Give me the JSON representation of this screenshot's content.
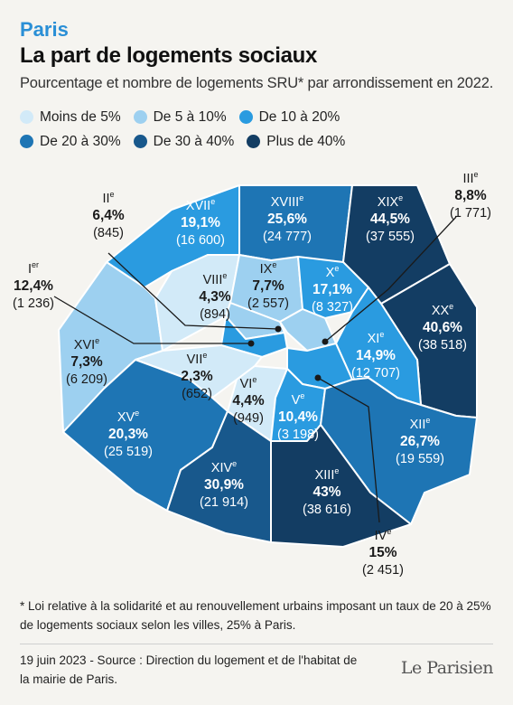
{
  "header": {
    "kicker": "Paris",
    "title": "La part de logements sociaux",
    "subtitle": "Pourcentage et nombre de logements SRU* par arrondissement en 2022."
  },
  "legend": [
    {
      "label": "Moins de 5%",
      "color": "#d2eaf8"
    },
    {
      "label": "De 5 à 10%",
      "color": "#9dd0f0"
    },
    {
      "label": "De 10 à 20%",
      "color": "#2a9be0"
    },
    {
      "label": "De 20 à 30%",
      "color": "#1e75b4"
    },
    {
      "label": "De 30 à 40%",
      "color": "#18588c"
    },
    {
      "label": "Plus de 40%",
      "color": "#133d63"
    }
  ],
  "arrondissements": [
    {
      "id": "1",
      "num": "I",
      "sup": "er",
      "pct": "12,4%",
      "count": "(1 236)",
      "color": "#2a9be0"
    },
    {
      "id": "2",
      "num": "II",
      "sup": "e",
      "pct": "6,4%",
      "count": "(845)",
      "color": "#9dd0f0"
    },
    {
      "id": "3",
      "num": "III",
      "sup": "e",
      "pct": "8,8%",
      "count": "(1 771)",
      "color": "#9dd0f0"
    },
    {
      "id": "4",
      "num": "IV",
      "sup": "e",
      "pct": "15%",
      "count": "(2 451)",
      "color": "#2a9be0"
    },
    {
      "id": "5",
      "num": "V",
      "sup": "e",
      "pct": "10,4%",
      "count": "(3 198)",
      "color": "#2a9be0"
    },
    {
      "id": "6",
      "num": "VI",
      "sup": "e",
      "pct": "4,4%",
      "count": "(949)",
      "color": "#d2eaf8"
    },
    {
      "id": "7",
      "num": "VII",
      "sup": "e",
      "pct": "2,3%",
      "count": "(652)",
      "color": "#d2eaf8"
    },
    {
      "id": "8",
      "num": "VIII",
      "sup": "e",
      "pct": "4,3%",
      "count": "(894)",
      "color": "#d2eaf8"
    },
    {
      "id": "9",
      "num": "IX",
      "sup": "e",
      "pct": "7,7%",
      "count": "(2 557)",
      "color": "#9dd0f0"
    },
    {
      "id": "10",
      "num": "X",
      "sup": "e",
      "pct": "17,1%",
      "count": "(8 327)",
      "color": "#2a9be0"
    },
    {
      "id": "11",
      "num": "XI",
      "sup": "e",
      "pct": "14,9%",
      "count": "(12 707)",
      "color": "#2a9be0"
    },
    {
      "id": "12",
      "num": "XII",
      "sup": "e",
      "pct": "26,7%",
      "count": "(19 559)",
      "color": "#1e75b4"
    },
    {
      "id": "13",
      "num": "XIII",
      "sup": "e",
      "pct": "43%",
      "count": "(38 616)",
      "color": "#133d63"
    },
    {
      "id": "14",
      "num": "XIV",
      "sup": "e",
      "pct": "30,9%",
      "count": "(21 914)",
      "color": "#18588c"
    },
    {
      "id": "15",
      "num": "XV",
      "sup": "e",
      "pct": "20,3%",
      "count": "(25 519)",
      "color": "#1e75b4"
    },
    {
      "id": "16",
      "num": "XVI",
      "sup": "e",
      "pct": "7,3%",
      "count": "(6 209)",
      "color": "#9dd0f0"
    },
    {
      "id": "17",
      "num": "XVII",
      "sup": "e",
      "pct": "19,1%",
      "count": "(16 600)",
      "color": "#2a9be0"
    },
    {
      "id": "18",
      "num": "XVIII",
      "sup": "e",
      "pct": "25,6%",
      "count": "(24 777)",
      "color": "#1e75b4"
    },
    {
      "id": "19",
      "num": "XIX",
      "sup": "e",
      "pct": "44,5%",
      "count": "(37 555)",
      "color": "#133d63"
    },
    {
      "id": "20",
      "num": "XX",
      "sup": "e",
      "pct": "40,6%",
      "count": "(38 518)",
      "color": "#133d63"
    }
  ],
  "footnote": "* Loi relative à la solidarité et au renouvellement urbains imposant un taux de 20 à 25% de logements sociaux selon les villes, 25% à Paris.",
  "source": "19 juin 2023 - Source : Direction du logement et de l'habitat de la mairie de Paris.",
  "logo": "Le Parisien"
}
